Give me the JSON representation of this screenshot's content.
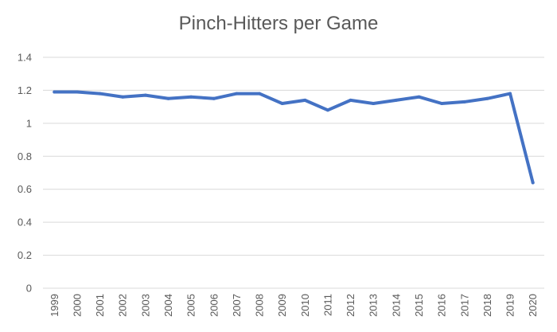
{
  "chart_data": {
    "type": "line",
    "title": "Pinch-Hitters per Game",
    "xlabel": "",
    "ylabel": "",
    "categories": [
      "1999",
      "2000",
      "2001",
      "2002",
      "2003",
      "2004",
      "2005",
      "2006",
      "2007",
      "2008",
      "2009",
      "2010",
      "2011",
      "2012",
      "2013",
      "2014",
      "2015",
      "2016",
      "2017",
      "2018",
      "2019",
      "2020"
    ],
    "series": [
      {
        "values": [
          1.19,
          1.19,
          1.18,
          1.16,
          1.17,
          1.15,
          1.16,
          1.15,
          1.18,
          1.18,
          1.12,
          1.14,
          1.08,
          1.14,
          1.12,
          1.14,
          1.16,
          1.12,
          1.13,
          1.15,
          1.18,
          0.64
        ],
        "color": "#4472c4"
      }
    ],
    "ylim": [
      0,
      1.4
    ],
    "yticks": [
      0,
      0.2,
      0.4,
      0.6,
      0.8,
      1,
      1.2,
      1.4
    ],
    "ytick_labels": [
      "0",
      "0.2",
      "0.4",
      "0.6",
      "0.8",
      "1",
      "1.2",
      "1.4"
    ],
    "grid": true,
    "legend": "none"
  }
}
